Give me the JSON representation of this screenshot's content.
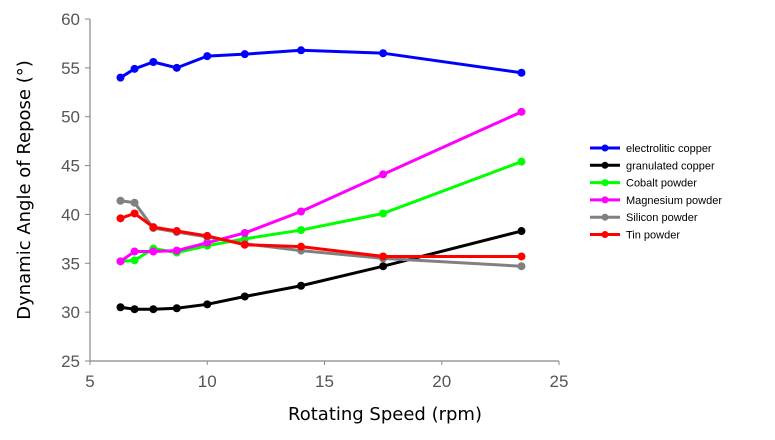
{
  "chart_data": {
    "type": "line",
    "title": "",
    "xlabel": "Rotating Speed (rpm)",
    "ylabel": "Dynamic Angle of Repose (°)",
    "xlim": [
      5,
      25
    ],
    "ylim": [
      25,
      60
    ],
    "xticks": [
      "5",
      "10",
      "15",
      "20",
      "25"
    ],
    "yticks": [
      "25",
      "30",
      "35",
      "40",
      "45",
      "50",
      "55",
      "60"
    ],
    "grid": false,
    "legend_position": "right",
    "x": [
      6.3,
      6.9,
      7.7,
      8.7,
      10.0,
      11.6,
      14.0,
      17.5,
      23.4
    ],
    "series": [
      {
        "name": "electrolitic copper",
        "color": "#0000ff",
        "values": [
          54.0,
          54.9,
          55.6,
          55.0,
          56.2,
          56.4,
          56.8,
          56.5,
          54.5
        ]
      },
      {
        "name": "granulated copper",
        "color": "#000000",
        "values": [
          30.5,
          30.3,
          30.3,
          30.4,
          30.8,
          31.6,
          32.7,
          34.7,
          38.3
        ]
      },
      {
        "name": "Cobalt powder",
        "color": "#00ff00",
        "values": [
          35.2,
          35.3,
          36.5,
          36.1,
          36.8,
          37.5,
          38.4,
          40.1,
          45.4
        ]
      },
      {
        "name": "Magnesium powder",
        "color": "#ff00ff",
        "values": [
          35.2,
          36.2,
          36.2,
          36.3,
          37.1,
          38.1,
          40.3,
          44.1,
          50.5
        ]
      },
      {
        "name": "Silicon powder",
        "color": "#808080",
        "values": [
          41.4,
          41.2,
          38.6,
          38.2,
          37.7,
          37.0,
          36.3,
          35.5,
          34.7
        ]
      },
      {
        "name": "Tin powder",
        "color": "#ff0000",
        "values": [
          39.6,
          40.1,
          38.7,
          38.3,
          37.8,
          36.9,
          36.7,
          35.7,
          35.7
        ]
      }
    ]
  }
}
